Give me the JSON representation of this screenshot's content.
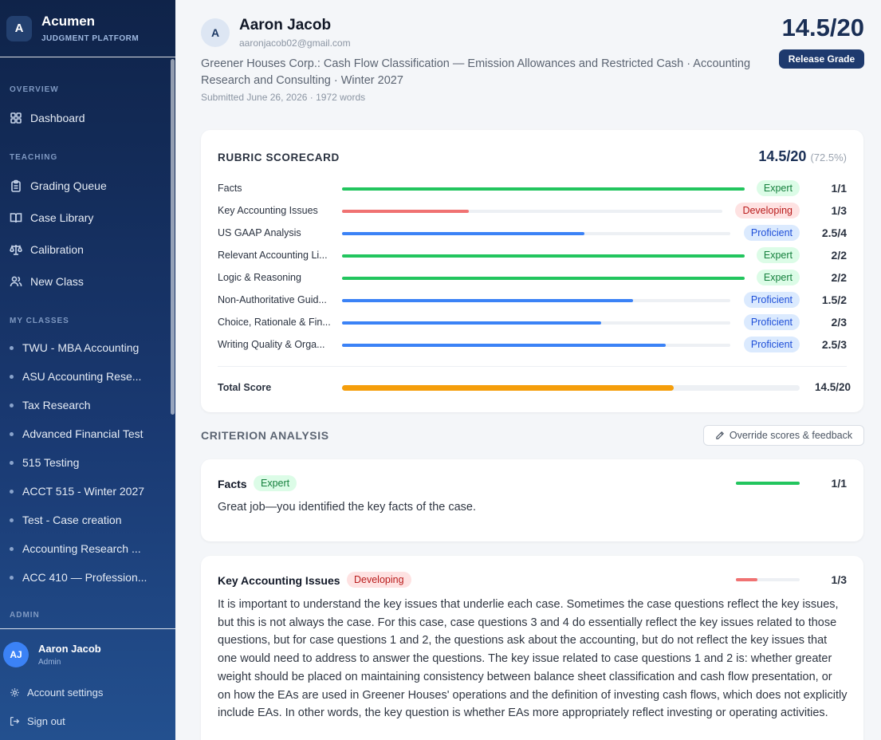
{
  "sidebar": {
    "logo_letter": "A",
    "app_name": "Acumen",
    "app_sub": "JUDGMENT PLATFORM",
    "sections": {
      "overview": "OVERVIEW",
      "teaching": "TEACHING",
      "my_classes": "MY CLASSES",
      "admin": "ADMIN"
    },
    "overview_items": [
      {
        "label": "Dashboard",
        "icon": "grid-icon"
      }
    ],
    "teaching_items": [
      {
        "label": "Grading Queue",
        "icon": "clipboard-icon"
      },
      {
        "label": "Case Library",
        "icon": "book-icon"
      },
      {
        "label": "Calibration",
        "icon": "scale-icon"
      },
      {
        "label": "New Class",
        "icon": "users-icon"
      }
    ],
    "classes": [
      "TWU - MBA Accounting",
      "ASU Accounting Rese...",
      "Tax Research",
      "Advanced Financial Test",
      "515 Testing",
      "ACCT 515 - Winter 2027",
      "Test - Case creation",
      "Accounting Research ...",
      "ACC 410 — Profession..."
    ],
    "user": {
      "initials": "AJ",
      "name": "Aaron Jacob",
      "role": "Admin"
    },
    "account_settings": "Account settings",
    "sign_out": "Sign out"
  },
  "header": {
    "avatar_letter": "A",
    "student_name": "Aaron Jacob",
    "student_email": "aaronjacob02@gmail.com",
    "case_title": "Greener Houses Corp.: Cash Flow Classification — Emission Allowances and Restricted Cash · Accounting Research and Consulting · Winter 2027",
    "submitted": "Submitted June 26, 2026 · 1972 words",
    "score": "14.5/20",
    "release_label": "Release Grade"
  },
  "scorecard": {
    "title": "RUBRIC SCORECARD",
    "total": "14.5/20",
    "total_pct": "(72.5%)",
    "rows": [
      {
        "label": "Facts",
        "level": "Expert",
        "score": "1/1",
        "fraction": 1.0
      },
      {
        "label": "Key Accounting Issues",
        "level": "Developing",
        "score": "1/3",
        "fraction": 0.333
      },
      {
        "label": "US GAAP Analysis",
        "level": "Proficient",
        "score": "2.5/4",
        "fraction": 0.625
      },
      {
        "label": "Relevant Accounting Li...",
        "level": "Expert",
        "score": "2/2",
        "fraction": 1.0
      },
      {
        "label": "Logic & Reasoning",
        "level": "Expert",
        "score": "2/2",
        "fraction": 1.0
      },
      {
        "label": "Non-Authoritative Guid...",
        "level": "Proficient",
        "score": "1.5/2",
        "fraction": 0.75
      },
      {
        "label": "Choice, Rationale & Fin...",
        "level": "Proficient",
        "score": "2/3",
        "fraction": 0.667
      },
      {
        "label": "Writing Quality & Orga...",
        "level": "Proficient",
        "score": "2.5/3",
        "fraction": 0.833
      }
    ],
    "total_label": "Total Score",
    "total_score": "14.5/20",
    "total_fraction": 0.725
  },
  "analysis": {
    "heading": "CRITERION ANALYSIS",
    "override_label": "Override scores & feedback",
    "criteria": [
      {
        "title": "Facts",
        "level": "Expert",
        "score": "1/1",
        "fraction": 1.0,
        "text": "Great job—you identified the key facts of the case."
      },
      {
        "title": "Key Accounting Issues",
        "level": "Developing",
        "score": "1/3",
        "fraction": 0.333,
        "text": "It is important to understand the key issues that underlie each case. Sometimes the case questions reflect the key issues, but this is not always the case. For this case, case questions 3 and 4 do essentially reflect the key issues related to those questions, but for case questions 1 and 2, the questions ask about the accounting, but do not reflect the key issues that one would need to address to answer the questions. The key issue related to case questions 1 and 2 is: whether greater weight should be placed on maintaining consistency between balance sheet classification and cash flow presentation, or on how the EAs are used in Greener Houses' operations and the definition of investing cash flows, which does not explicitly include EAs. In other words, the key question is whether EAs more appropriately reflect investing or operating activities."
      }
    ]
  },
  "colors": {
    "expert": "#22c55e",
    "proficient": "#3b82f6",
    "developing": "#f07272",
    "total": "#f59e0b"
  }
}
